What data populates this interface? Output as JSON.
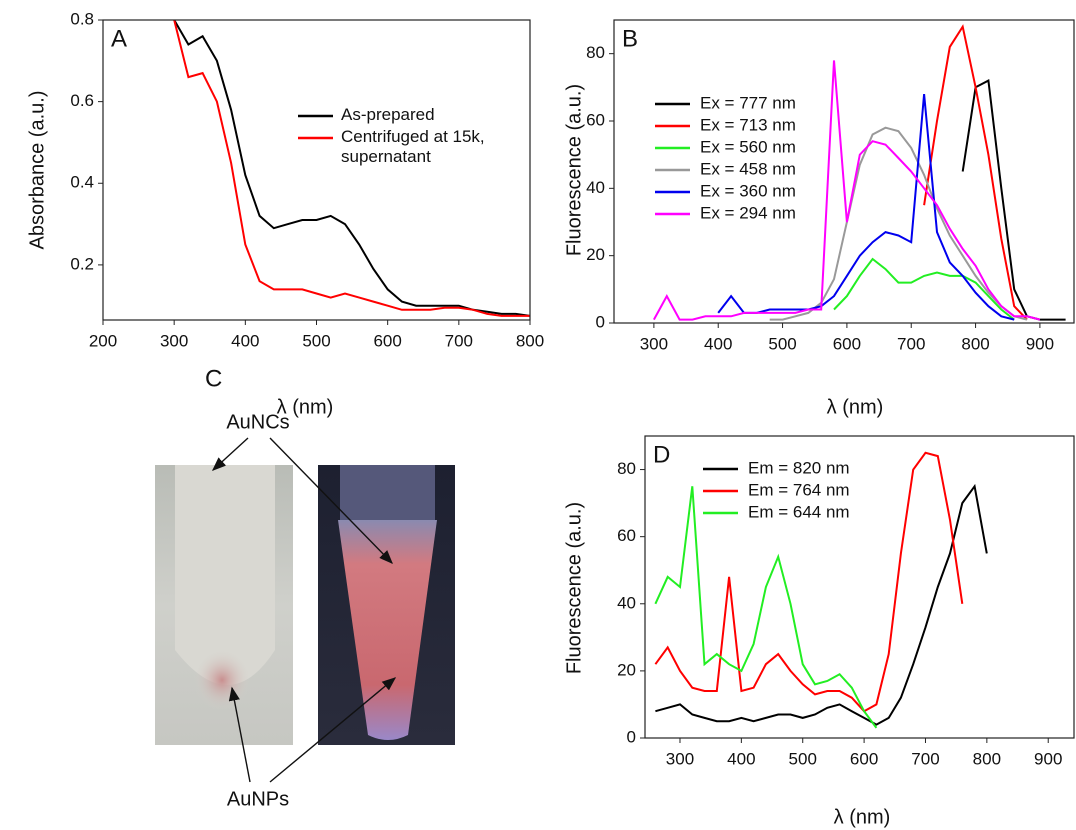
{
  "chart_data": [
    {
      "type": "line",
      "label": "A",
      "ylabel": "Absorbance (a.u.)",
      "xlabel": "λ (nm)",
      "xlim": [
        200,
        800
      ],
      "xticks": [
        200,
        300,
        400,
        500,
        600,
        700,
        800
      ],
      "ylim": [
        0.065,
        0.8
      ],
      "yticks": [
        0.2,
        0.4,
        0.6,
        0.8
      ],
      "x": [
        200,
        220,
        240,
        260,
        280,
        300,
        320,
        340,
        360,
        380,
        400,
        420,
        440,
        460,
        480,
        500,
        520,
        540,
        560,
        580,
        600,
        620,
        640,
        660,
        680,
        700,
        720,
        740,
        760,
        780,
        800
      ],
      "series": [
        {
          "name": "As-prepared",
          "color": "#000000",
          "values": [
            null,
            null,
            null,
            null,
            null,
            0.8,
            0.74,
            0.76,
            0.7,
            0.58,
            0.42,
            0.32,
            0.29,
            0.3,
            0.31,
            0.31,
            0.32,
            0.3,
            0.25,
            0.19,
            0.14,
            0.11,
            0.1,
            0.1,
            0.1,
            0.1,
            0.09,
            0.085,
            0.08,
            0.08,
            0.075
          ]
        },
        {
          "name": "Centrifuged at 15k, supernatant",
          "color": "#ff0000",
          "values": [
            null,
            null,
            null,
            null,
            null,
            0.8,
            0.66,
            0.67,
            0.6,
            0.45,
            0.25,
            0.16,
            0.14,
            0.14,
            0.14,
            0.13,
            0.12,
            0.13,
            0.12,
            0.11,
            0.1,
            0.09,
            0.09,
            0.09,
            0.095,
            0.095,
            0.09,
            0.08,
            0.075,
            0.075,
            0.075
          ]
        }
      ]
    },
    {
      "type": "line",
      "label": "B",
      "ylabel": "Fluorescence (a.u.)",
      "xlabel": "λ (nm)",
      "xlim": [
        238,
        953
      ],
      "xticks": [
        300,
        400,
        500,
        600,
        700,
        800,
        900
      ],
      "ylim": [
        0,
        90
      ],
      "yticks": [
        0,
        20,
        40,
        60,
        80
      ],
      "x": [
        300,
        320,
        340,
        360,
        380,
        400,
        420,
        440,
        460,
        480,
        500,
        520,
        540,
        560,
        580,
        600,
        620,
        640,
        660,
        680,
        700,
        720,
        740,
        760,
        780,
        800,
        820,
        840,
        860,
        880,
        900,
        920,
        940
      ],
      "series": [
        {
          "name": "Ex = 777 nm",
          "color": "#000000",
          "values": [
            null,
            null,
            null,
            null,
            null,
            null,
            null,
            null,
            null,
            null,
            null,
            null,
            null,
            null,
            null,
            null,
            null,
            null,
            null,
            null,
            null,
            null,
            null,
            null,
            45,
            70,
            72,
            40,
            10,
            2,
            1,
            1,
            1
          ]
        },
        {
          "name": "Ex = 713 nm",
          "color": "#ff0000",
          "values": [
            null,
            null,
            null,
            null,
            null,
            null,
            null,
            null,
            null,
            null,
            null,
            null,
            null,
            null,
            null,
            null,
            null,
            null,
            null,
            null,
            null,
            35,
            60,
            82,
            88,
            70,
            50,
            25,
            5,
            1,
            null,
            null,
            null
          ]
        },
        {
          "name": "Ex = 560 nm",
          "color": "#22ee22",
          "values": [
            null,
            null,
            null,
            null,
            null,
            null,
            null,
            null,
            null,
            null,
            null,
            null,
            null,
            null,
            4,
            8,
            14,
            19,
            16,
            12,
            12,
            14,
            15,
            14,
            14,
            12,
            8,
            4,
            1,
            null,
            null,
            null,
            null
          ]
        },
        {
          "name": "Ex = 458 nm",
          "color": "#999999",
          "values": [
            null,
            null,
            null,
            null,
            null,
            null,
            null,
            null,
            null,
            1,
            1,
            2,
            3,
            6,
            13,
            30,
            47,
            56,
            58,
            57,
            52,
            44,
            34,
            26,
            20,
            14,
            9,
            5,
            2,
            1,
            null,
            null,
            null
          ]
        },
        {
          "name": "Ex = 360 nm",
          "color": "#0000ee",
          "values": [
            null,
            null,
            null,
            null,
            null,
            3,
            8,
            3,
            3,
            4,
            4,
            4,
            4,
            5,
            8,
            14,
            20,
            24,
            27,
            26,
            24,
            68,
            27,
            18,
            14,
            9,
            5,
            2,
            1,
            null,
            null,
            null,
            null
          ]
        },
        {
          "name": "Ex = 294 nm",
          "color": "#ff00ff",
          "values": [
            1,
            8,
            1,
            1,
            2,
            2,
            2,
            3,
            3,
            3,
            3,
            3,
            4,
            4,
            78,
            30,
            50,
            54,
            53,
            49,
            45,
            40,
            35,
            28,
            22,
            17,
            10,
            5,
            2,
            2,
            1,
            null,
            null
          ]
        }
      ]
    },
    {
      "type": "line",
      "label": "D",
      "ylabel": "Fluorescence (a.u.)",
      "xlabel": "λ (nm)",
      "xlim": [
        243,
        942
      ],
      "xticks": [
        300,
        400,
        500,
        600,
        700,
        800,
        900
      ],
      "ylim": [
        0,
        90
      ],
      "yticks": [
        0,
        20,
        40,
        60,
        80
      ],
      "x": [
        260,
        280,
        300,
        320,
        340,
        360,
        380,
        400,
        420,
        440,
        460,
        480,
        500,
        520,
        540,
        560,
        580,
        600,
        620,
        640,
        660,
        680,
        700,
        720,
        740,
        760,
        780,
        800
      ],
      "series": [
        {
          "name": "Em = 820 nm",
          "color": "#000000",
          "values": [
            8,
            9,
            10,
            7,
            6,
            5,
            5,
            6,
            5,
            6,
            7,
            7,
            6,
            7,
            9,
            10,
            8,
            6,
            4,
            6,
            12,
            22,
            33,
            45,
            55,
            70,
            75,
            55
          ]
        },
        {
          "name": "Em = 764 nm",
          "color": "#ff0000",
          "values": [
            22,
            27,
            20,
            15,
            14,
            14,
            48,
            14,
            15,
            22,
            25,
            20,
            16,
            13,
            14,
            14,
            12,
            8,
            10,
            25,
            55,
            80,
            85,
            84,
            65,
            40,
            null,
            null
          ]
        },
        {
          "name": "Em = 644 nm",
          "color": "#22ee22",
          "values": [
            40,
            48,
            45,
            75,
            22,
            25,
            22,
            20,
            28,
            45,
            54,
            40,
            22,
            16,
            17,
            19,
            15,
            8,
            3,
            null,
            null,
            null,
            null,
            null,
            null,
            null,
            null,
            null
          ]
        }
      ]
    }
  ],
  "panel_c": {
    "label": "C",
    "top_text": "AuNCs",
    "bottom_text": "AuNPs"
  }
}
